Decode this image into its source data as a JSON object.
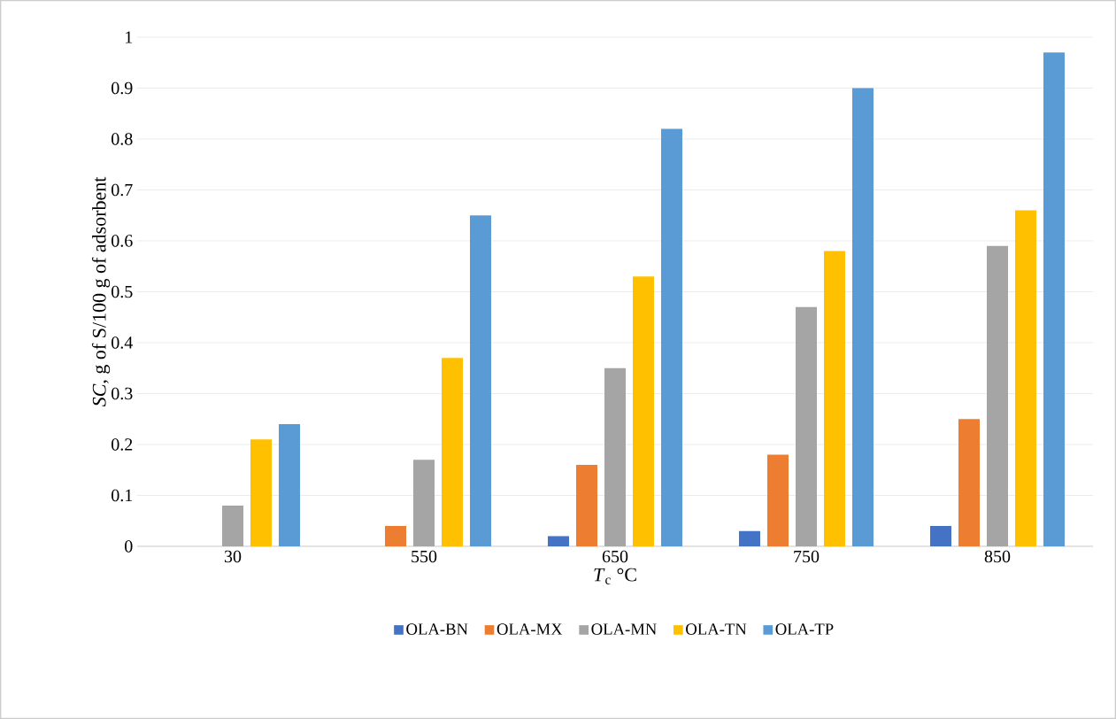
{
  "chart_data": {
    "type": "bar",
    "xlabel": "*T*$_{c}$ °C",
    "ylabel": "*SC*, g of S/100 g of adsorbent",
    "categories": [
      "30",
      "550",
      "650",
      "750",
      "850"
    ],
    "series": [
      {
        "name": "OLA-BN",
        "color": "#4472c4",
        "values": [
          0,
          0,
          0.02,
          0.03,
          0.04
        ]
      },
      {
        "name": "OLA-MX",
        "color": "#ed7d31",
        "values": [
          0,
          0.04,
          0.16,
          0.18,
          0.25
        ]
      },
      {
        "name": "OLA-MN",
        "color": "#a5a5a5",
        "values": [
          0.08,
          0.17,
          0.35,
          0.47,
          0.59
        ]
      },
      {
        "name": "OLA-TN",
        "color": "#ffc000",
        "values": [
          0.21,
          0.37,
          0.53,
          0.58,
          0.66
        ]
      },
      {
        "name": "OLA-TP",
        "color": "#5b9bd5",
        "values": [
          0.24,
          0.65,
          0.82,
          0.9,
          0.97
        ]
      }
    ],
    "ylim": [
      0,
      1
    ],
    "yticks": [
      0,
      0.1,
      0.2,
      0.3,
      0.4,
      0.5,
      0.6,
      0.7,
      0.8,
      0.9,
      1
    ],
    "grid": "y",
    "legend": "bottom"
  }
}
